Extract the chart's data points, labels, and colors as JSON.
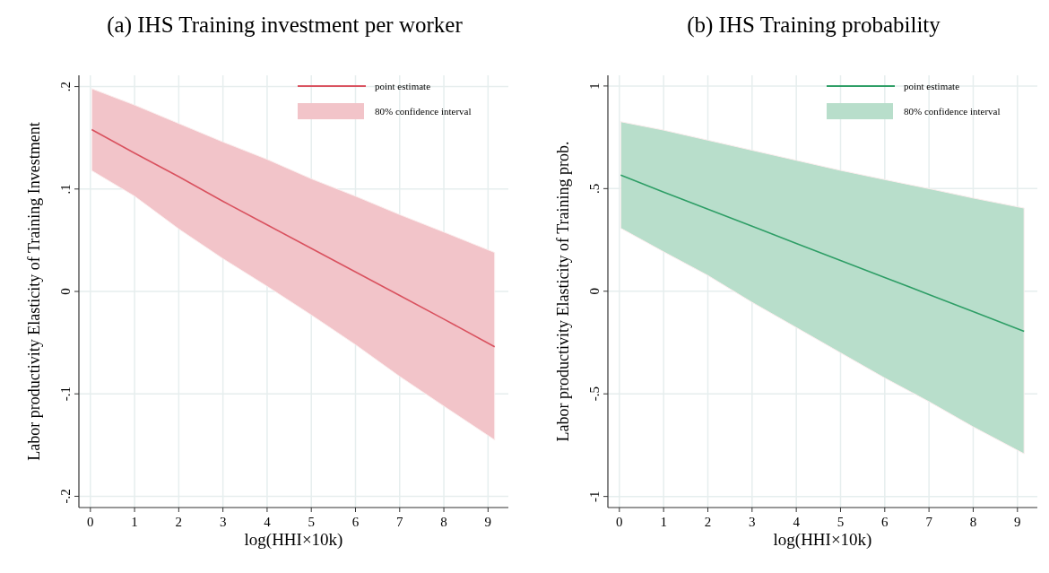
{
  "chart_data": [
    {
      "type": "line",
      "title": "(a) IHS Training investment per worker",
      "xlabel": "log(HHI×10k)",
      "ylabel": "Labor productivity Elasticity of Training Investment",
      "xlim": [
        -0.26,
        9.46
      ],
      "xticks": [
        0,
        1,
        2,
        3,
        4,
        5,
        6,
        7,
        8,
        9
      ],
      "ylim": [
        -0.211,
        0.211
      ],
      "yticks": [
        {
          "value": 0.2,
          "label": ".2"
        },
        {
          "value": 0.1,
          "label": ".1"
        },
        0,
        {
          "value": -0.1,
          "label": "-.1"
        },
        {
          "value": -0.2,
          "label": "-.2"
        }
      ],
      "grid": true,
      "legend": "top right",
      "annotations": [
        "80% confidence interval"
      ],
      "series": [
        {
          "name": "point estimate",
          "color": "#d9525f",
          "x": [
            0.03,
            1,
            2,
            3,
            4,
            5,
            6,
            7,
            8,
            9.15
          ],
          "values": [
            0.158,
            0.135,
            0.112,
            0.088,
            0.065,
            0.042,
            0.019,
            -0.004,
            -0.027,
            -0.054
          ],
          "upper": [
            0.198,
            0.182,
            0.164,
            0.146,
            0.129,
            0.11,
            0.093,
            0.075,
            0.058,
            0.038
          ],
          "lower": [
            0.118,
            0.093,
            0.061,
            0.032,
            0.005,
            -0.023,
            -0.052,
            -0.083,
            -0.112,
            -0.145
          ]
        }
      ]
    },
    {
      "type": "line",
      "title": "(b) IHS Training probability",
      "xlabel": "log(HHI×10k)",
      "ylabel": "Labor productivity Elasticity of Training prob.",
      "xlim": [
        -0.26,
        9.45
      ],
      "xticks": [
        0,
        1,
        2,
        3,
        4,
        5,
        6,
        7,
        8,
        9
      ],
      "ylim": [
        -1.054,
        1.052
      ],
      "yticks": [
        1,
        {
          "value": 0.5,
          "label": ".5"
        },
        0,
        {
          "value": -0.5,
          "label": "-.5"
        },
        -1
      ],
      "grid": true,
      "legend": "top right",
      "annotations": [
        "80% confidence interval"
      ],
      "series": [
        {
          "name": "point estimate",
          "color": "#2e9e66",
          "x": [
            0.03,
            1,
            2,
            3,
            4,
            5,
            6,
            7,
            8,
            9.15
          ],
          "values": [
            0.566,
            0.483,
            0.4,
            0.317,
            0.233,
            0.15,
            0.067,
            -0.016,
            -0.099,
            -0.195
          ],
          "upper": [
            0.826,
            0.785,
            0.736,
            0.687,
            0.638,
            0.589,
            0.544,
            0.5,
            0.454,
            0.405
          ],
          "lower": [
            0.307,
            0.192,
            0.077,
            -0.054,
            -0.177,
            -0.3,
            -0.423,
            -0.538,
            -0.661,
            -0.792
          ]
        }
      ]
    }
  ]
}
